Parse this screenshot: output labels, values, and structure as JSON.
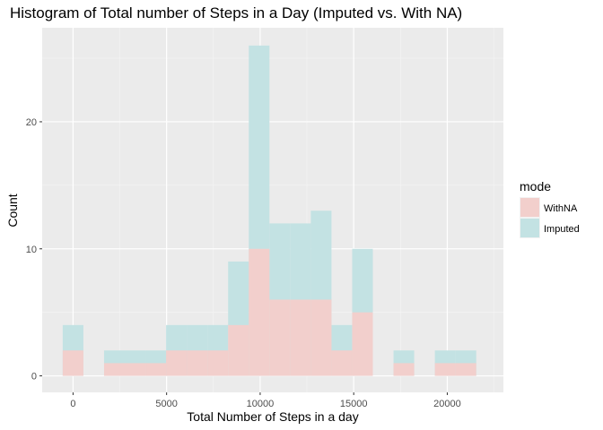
{
  "chart_data": {
    "type": "bar",
    "title": "Histogram of Total number of Steps in a Day (Imputed vs. With NA)",
    "xlabel": "Total Number of Steps in a day",
    "ylabel": "Count",
    "xlim": [
      -1650,
      23000
    ],
    "ylim": [
      -1.3,
      27.4
    ],
    "xticks": [
      0,
      5000,
      10000,
      15000,
      20000
    ],
    "yticks": [
      0,
      10,
      20
    ],
    "bin_width": 1105,
    "bin_centers": [
      0,
      2210,
      3315,
      4420,
      5525,
      6630,
      7735,
      8840,
      9945,
      11050,
      12155,
      13260,
      14365,
      15470,
      17680,
      19890,
      20995
    ],
    "legend": {
      "title": "mode",
      "position": "right",
      "entries": [
        {
          "label": "WithNA",
          "color": "#f2cfcc"
        },
        {
          "label": "Imputed",
          "color": "#c3e2e3"
        }
      ]
    },
    "series": [
      {
        "name": "WithNA",
        "color": "#f2cfcc",
        "values": [
          2,
          1,
          1,
          1,
          2,
          2,
          2,
          4,
          10,
          6,
          6,
          6,
          2,
          5,
          1,
          1,
          1
        ]
      },
      {
        "name": "Imputed",
        "color": "#c3e2e3",
        "values": [
          4,
          2,
          2,
          2,
          4,
          4,
          4,
          9,
          26,
          12,
          12,
          13,
          4,
          10,
          2,
          2,
          2
        ]
      }
    ],
    "grid": true
  }
}
